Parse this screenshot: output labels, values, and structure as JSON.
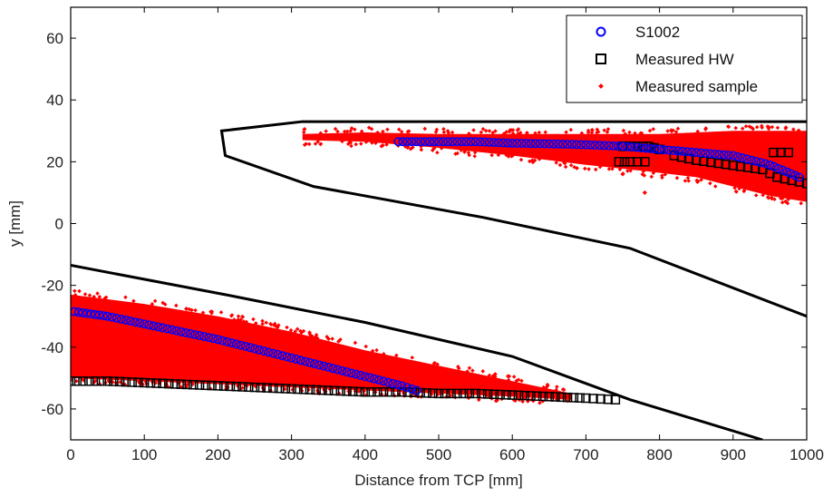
{
  "chart_data": {
    "type": "scatter",
    "title": "",
    "xlabel": "Distance from TCP [mm]",
    "ylabel": "y [mm]",
    "xlim": [
      0,
      1000
    ],
    "ylim": [
      -70,
      70
    ],
    "x_ticks": [
      0,
      100,
      200,
      300,
      400,
      500,
      600,
      700,
      800,
      900,
      1000
    ],
    "y_ticks": [
      -60,
      -40,
      -20,
      0,
      20,
      40,
      60
    ],
    "grid": false,
    "legend_position": "top-right",
    "boundary_lines": [
      {
        "points": [
          [
            1000,
            33
          ],
          [
            315,
            33
          ],
          [
            205,
            30
          ],
          [
            210,
            22
          ],
          [
            330,
            12
          ],
          [
            560,
            2
          ],
          [
            760,
            -8
          ],
          [
            1000,
            -30
          ]
        ]
      },
      {
        "points": [
          [
            0,
            -13.5
          ],
          [
            210,
            -23
          ],
          [
            400,
            -32
          ],
          [
            600,
            -43
          ],
          [
            760,
            -57
          ],
          [
            940,
            -70
          ]
        ]
      }
    ],
    "series": [
      {
        "name": "S1002",
        "marker": "circle",
        "color": "#0000ff",
        "segments": [
          {
            "x": [
              445,
              500,
              550,
              600,
              650,
              700,
              750,
              800,
              850,
              900,
              950,
              990
            ],
            "y": [
              26.5,
              26.5,
              26.5,
              26,
              25.8,
              25.5,
              25,
              24,
              23,
              22,
              19,
              15
            ]
          },
          {
            "x": [
              5,
              50,
              100,
              150,
              200,
              250,
              300,
              350,
              400,
              450,
              470
            ],
            "y": [
              -28.5,
              -30,
              -32.5,
              -35,
              -37.5,
              -40.5,
              -43.5,
              -46.5,
              -49.5,
              -52.5,
              -54
            ]
          }
        ]
      },
      {
        "name": "Measured HW",
        "marker": "square",
        "color": "#000000",
        "segments": [
          {
            "x": [
              0,
              50,
              100,
              150,
              200,
              250,
              300,
              350,
              400,
              450,
              500,
              550,
              600,
              650,
              700,
              740
            ],
            "y": [
              -51,
              -51,
              -51.5,
              -52,
              -52.5,
              -53,
              -53.5,
              -54,
              -54.5,
              -54.5,
              -55,
              -55,
              -55.5,
              -56,
              -56.5,
              -57
            ]
          },
          {
            "x": [
              745,
              760,
              780
            ],
            "y": [
              20,
              20,
              20
            ]
          },
          {
            "x": [
              750,
              770,
              785,
              800
            ],
            "y": [
              25,
              25,
              25,
              24
            ]
          },
          {
            "x": [
              820,
              850,
              880,
              910,
              940,
              960,
              980,
              1000
            ],
            "y": [
              22,
              20.5,
              19.5,
              18.5,
              17.5,
              15,
              14,
              13
            ]
          },
          {
            "x": [
              955,
              965,
              975
            ],
            "y": [
              23,
              23,
              23
            ]
          }
        ]
      },
      {
        "name": "Measured sample",
        "marker": "dot",
        "color": "#ff0000",
        "bands": [
          {
            "upper": [
              [
                315,
                29
              ],
              [
                400,
                29.5
              ],
              [
                500,
                29
              ],
              [
                600,
                29
              ],
              [
                700,
                29
              ],
              [
                800,
                29
              ],
              [
                900,
                30
              ],
              [
                1000,
                30
              ]
            ],
            "lower": [
              [
                1000,
                7
              ],
              [
                950,
                9
              ],
              [
                900,
                12
              ],
              [
                850,
                15
              ],
              [
                780,
                17
              ],
              [
                700,
                19
              ],
              [
                600,
                22
              ],
              [
                500,
                24.5
              ],
              [
                400,
                26.5
              ],
              [
                315,
                27
              ]
            ]
          },
          {
            "upper": [
              [
                0,
                -23
              ],
              [
                100,
                -26
              ],
              [
                200,
                -30
              ],
              [
                300,
                -35
              ],
              [
                400,
                -41
              ],
              [
                500,
                -46
              ],
              [
                600,
                -51
              ],
              [
                680,
                -55
              ]
            ],
            "lower": [
              [
                680,
                -57
              ],
              [
                600,
                -56
              ],
              [
                500,
                -55
              ],
              [
                400,
                -54
              ],
              [
                300,
                -53
              ],
              [
                200,
                -52
              ],
              [
                100,
                -51
              ],
              [
                0,
                -50
              ]
            ]
          }
        ],
        "outliers": [
          [
            750,
            16
          ],
          [
            700,
            26
          ],
          [
            780,
            10
          ]
        ]
      }
    ]
  }
}
